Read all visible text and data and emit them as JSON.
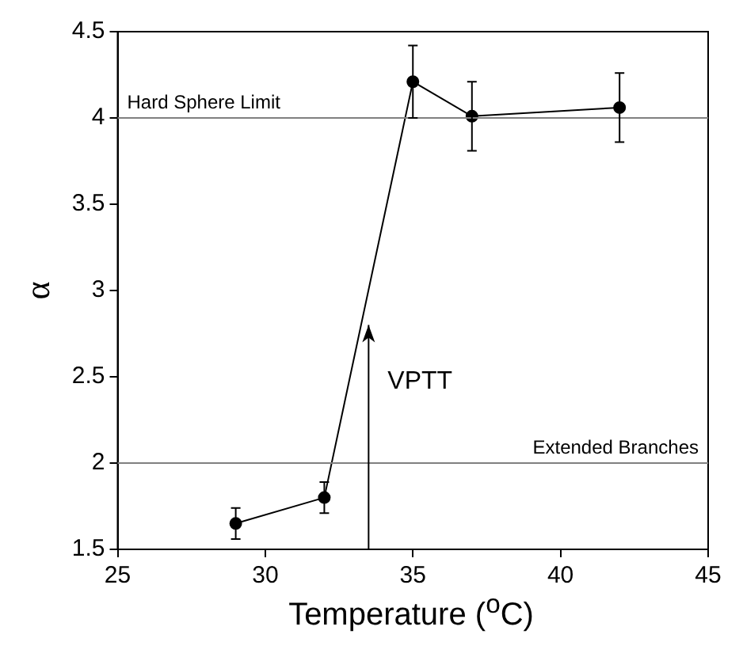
{
  "chart_data": {
    "type": "line",
    "xlabel": "Temperature ($^{o}$C)",
    "ylabel": "α",
    "x": [
      29,
      32,
      35,
      37,
      42
    ],
    "series": [
      {
        "color": "#000000",
        "values": [
          1.65,
          1.8,
          4.21,
          4.01,
          4.06
        ],
        "errors": [
          0.09,
          0.09,
          0.21,
          0.2,
          0.2
        ]
      }
    ],
    "xlim": [
      25,
      45
    ],
    "xticks": [
      25,
      30,
      35,
      40,
      45
    ],
    "ylim": [
      1.5,
      4.5
    ],
    "yticks": [
      1.5,
      2,
      2.5,
      3,
      3.5,
      4,
      4.5
    ],
    "ref_lines": [
      {
        "axis": "y",
        "value": 4,
        "label": "Hard Sphere Limit",
        "color": "#808080"
      },
      {
        "axis": "y",
        "value": 2,
        "label": "Extended Branches",
        "color": "#808080"
      }
    ],
    "annotations": [
      {
        "text": "VPTT",
        "x": 33.5,
        "y": 2.8
      }
    ],
    "marker": "circle",
    "line_style": "solid",
    "legend": false,
    "grid": false
  }
}
